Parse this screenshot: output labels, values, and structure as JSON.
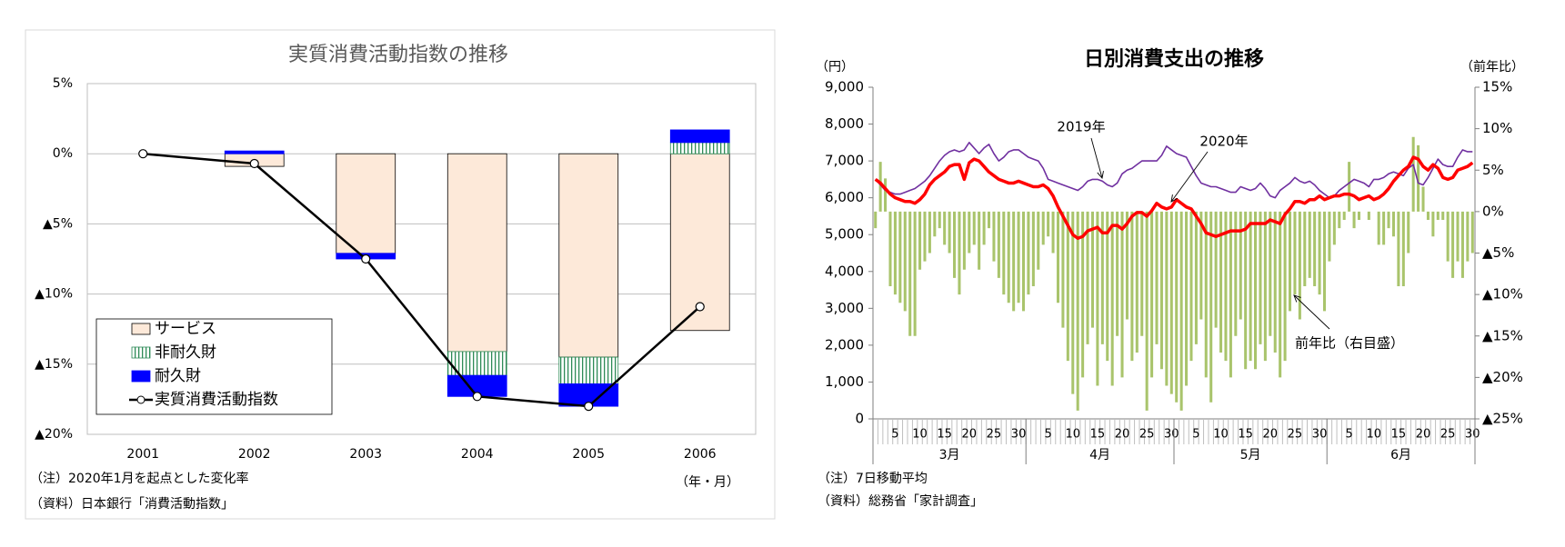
{
  "chart_data": [
    {
      "type": "bar",
      "title": "実質消費活動指数の推移",
      "categories": [
        "2001",
        "2002",
        "2003",
        "2004",
        "2005",
        "2006"
      ],
      "x_unit_label": "（年・月）",
      "notes": [
        "（注）2020年1月を起点とした変化率",
        "（資料）日本銀行「消費活動指数」"
      ],
      "ylim": [
        -20,
        5
      ],
      "yticks": [
        {
          "value": 5,
          "label": "5%"
        },
        {
          "value": 0,
          "label": "0%"
        },
        {
          "value": -5,
          "label": "▲5%"
        },
        {
          "value": -10,
          "label": "▲10%"
        },
        {
          "value": -15,
          "label": "▲15%"
        },
        {
          "value": -20,
          "label": "▲20%"
        }
      ],
      "grid": true,
      "series": [
        {
          "name": "サービス",
          "color": "#fde9d9",
          "values": [
            0,
            -0.9,
            -7.1,
            -14.1,
            -14.5,
            -12.6
          ]
        },
        {
          "name": "非耐久財",
          "color": "#2e8b57",
          "pattern": "vertical-stripes",
          "values": [
            0,
            0,
            0,
            -1.7,
            -1.9,
            0.8
          ]
        },
        {
          "name": "耐久財",
          "color": "#0000ff",
          "values": [
            0,
            0.2,
            -0.4,
            -1.5,
            -1.6,
            0.9
          ]
        },
        {
          "name": "実質消費活動指数",
          "type": "line",
          "color": "#000000",
          "values": [
            0,
            -0.7,
            -7.5,
            -17.3,
            -18.0,
            -10.9
          ]
        }
      ]
    },
    {
      "type": "line",
      "title": "日別消費支出の推移",
      "y_label": "（円）",
      "y2_label": "（前年比）",
      "notes": [
        "（注）7日移動平均",
        "（資料）総務省「家計調査」"
      ],
      "month_labels": [
        "3月",
        "4月",
        "5月",
        "6月"
      ],
      "categories": [
        null,
        null,
        null,
        null,
        "5",
        null,
        null,
        null,
        null,
        "10",
        null,
        null,
        null,
        null,
        "15",
        null,
        null,
        null,
        null,
        "20",
        null,
        null,
        null,
        null,
        "25",
        null,
        null,
        null,
        null,
        "30",
        null,
        null,
        null,
        null,
        null,
        "5",
        null,
        null,
        null,
        null,
        "10",
        null,
        null,
        null,
        null,
        "15",
        null,
        null,
        null,
        null,
        "20",
        null,
        null,
        null,
        null,
        "25",
        null,
        null,
        null,
        null,
        "30",
        null,
        null,
        null,
        null,
        "5",
        null,
        null,
        null,
        null,
        "10",
        null,
        null,
        null,
        null,
        "15",
        null,
        null,
        null,
        null,
        "20",
        null,
        null,
        null,
        null,
        "25",
        null,
        null,
        null,
        null,
        "30",
        null,
        null,
        null,
        null,
        null,
        "5",
        null,
        null,
        null,
        null,
        "10",
        null,
        null,
        null,
        null,
        "15",
        null,
        null,
        null,
        null,
        "20",
        null,
        null,
        null,
        null,
        "25",
        null,
        null,
        null,
        null,
        "30"
      ],
      "ylim": [
        0,
        9000
      ],
      "yticks": [
        0,
        {
          "value": 1000,
          "label": "1,000"
        },
        {
          "value": 2000,
          "label": "2,000"
        },
        {
          "value": 3000,
          "label": "3,000"
        },
        {
          "value": 4000,
          "label": "4,000"
        },
        {
          "value": 5000,
          "label": "5,000"
        },
        {
          "value": 6000,
          "label": "6,000"
        },
        {
          "value": 7000,
          "label": "7,000"
        },
        {
          "value": 8000,
          "label": "8,000"
        },
        {
          "value": 9000,
          "label": "9,000"
        }
      ],
      "y2lim": [
        -25,
        15
      ],
      "y2ticks": [
        {
          "value": 15,
          "label": "15%"
        },
        {
          "value": 10,
          "label": "10%"
        },
        {
          "value": 5,
          "label": "5%"
        },
        {
          "value": 0,
          "label": "0%"
        },
        {
          "value": -5,
          "label": "▲5%"
        },
        {
          "value": -10,
          "label": "▲10%"
        },
        {
          "value": -15,
          "label": "▲15%"
        },
        {
          "value": -20,
          "label": "▲20%"
        },
        {
          "value": -25,
          "label": "▲25%"
        }
      ],
      "annotations": [
        {
          "text": "2019年",
          "series": 1
        },
        {
          "text": "2020年",
          "series": 0
        },
        {
          "text": "前年比（右目盛）",
          "series": 2
        }
      ],
      "series": [
        {
          "name": "2020年",
          "color": "#ff0000",
          "values": [
            6500,
            6400,
            6250,
            6100,
            6000,
            5950,
            5900,
            5900,
            5850,
            5950,
            6100,
            6350,
            6500,
            6600,
            6700,
            6850,
            6900,
            6900,
            6500,
            6950,
            7050,
            7000,
            6850,
            6700,
            6600,
            6500,
            6450,
            6400,
            6400,
            6450,
            6400,
            6350,
            6300,
            6300,
            6350,
            6250,
            6050,
            5750,
            5500,
            5250,
            5000,
            4900,
            4950,
            5100,
            5150,
            5200,
            5050,
            5050,
            5250,
            5250,
            5150,
            5300,
            5500,
            5600,
            5600,
            5500,
            5650,
            5850,
            5750,
            5700,
            5750,
            5950,
            5850,
            5750,
            5700,
            5500,
            5300,
            5050,
            5000,
            4950,
            5000,
            5050,
            5100,
            5100,
            5100,
            5150,
            5300,
            5300,
            5300,
            5300,
            5400,
            5350,
            5300,
            5550,
            5700,
            5900,
            5900,
            5850,
            5950,
            5950,
            6050,
            5950,
            6000,
            6050,
            6050,
            6100,
            6100,
            6050,
            5950,
            6000,
            6050,
            5950,
            6000,
            6100,
            6250,
            6450,
            6600,
            6750,
            6850,
            7100,
            7050,
            6850,
            6750,
            6900,
            6800,
            6550,
            6500,
            6550,
            6750,
            6800,
            6850,
            6950
          ]
        },
        {
          "name": "2019年",
          "color": "#7030a0",
          "values": [
            6500,
            6350,
            6200,
            6150,
            6100,
            6100,
            6150,
            6200,
            6250,
            6350,
            6450,
            6600,
            6800,
            7000,
            7150,
            7250,
            7300,
            7250,
            7300,
            7500,
            7350,
            7200,
            7350,
            7450,
            7200,
            7000,
            7100,
            7250,
            7300,
            7300,
            7200,
            7100,
            7050,
            7000,
            6800,
            6500,
            6450,
            6400,
            6350,
            6300,
            6250,
            6200,
            6300,
            6450,
            6500,
            6500,
            6450,
            6350,
            6300,
            6400,
            6650,
            6750,
            6800,
            6900,
            7000,
            7000,
            7000,
            7000,
            7150,
            7400,
            7300,
            7200,
            7150,
            7100,
            6850,
            6600,
            6400,
            6350,
            6300,
            6300,
            6250,
            6200,
            6150,
            6150,
            6300,
            6250,
            6200,
            6250,
            6400,
            6250,
            6050,
            6000,
            6200,
            6300,
            6400,
            6550,
            6450,
            6400,
            6450,
            6350,
            6200,
            6100,
            6000,
            6050,
            6200,
            6300,
            6400,
            6500,
            6450,
            6400,
            6300,
            6500,
            6500,
            6550,
            6650,
            6700,
            6650,
            6600,
            6800,
            6900,
            6400,
            6350,
            6550,
            6800,
            7050,
            6900,
            6850,
            6850,
            7100,
            7300,
            7250,
            7250
          ]
        },
        {
          "name": "前年比",
          "type": "bar",
          "axis": "y2",
          "color": "#a9c46c",
          "values": [
            -2,
            6,
            4,
            -9,
            -10,
            -11,
            -12,
            -15,
            -15,
            -7,
            -6,
            -5,
            -3,
            -2,
            -4,
            -5,
            -8,
            -10,
            -7,
            -5,
            -4,
            -7,
            -4,
            -2,
            -6,
            -8,
            -10,
            -11,
            -12,
            -11,
            -12,
            -10,
            -9,
            -7,
            -4,
            -3,
            -5,
            -11,
            -14,
            -18,
            -22,
            -24,
            -20,
            -16,
            -14,
            -21,
            -16,
            -18,
            -21,
            -15,
            -20,
            -13,
            -18,
            -17,
            -15,
            -24,
            -20,
            -16,
            -19,
            -21,
            -22,
            -23,
            -24,
            -21,
            -18,
            -16,
            -13,
            -20,
            -23,
            -14,
            -17,
            -18,
            -20,
            -15,
            -13,
            -19,
            -18,
            -19,
            -16,
            -18,
            -15,
            -17,
            -20,
            -18,
            -12,
            -10,
            -13,
            -9,
            -8,
            -9,
            -10,
            -12,
            -6,
            -4,
            -2,
            -1,
            6,
            -2,
            -1,
            0,
            -1,
            0,
            -4,
            -4,
            -2,
            -3,
            -9,
            -9,
            -5,
            9,
            8,
            3,
            -1,
            -3,
            -1,
            -1,
            -6,
            -8,
            -6,
            -8,
            -6,
            -5
          ]
        }
      ]
    }
  ]
}
